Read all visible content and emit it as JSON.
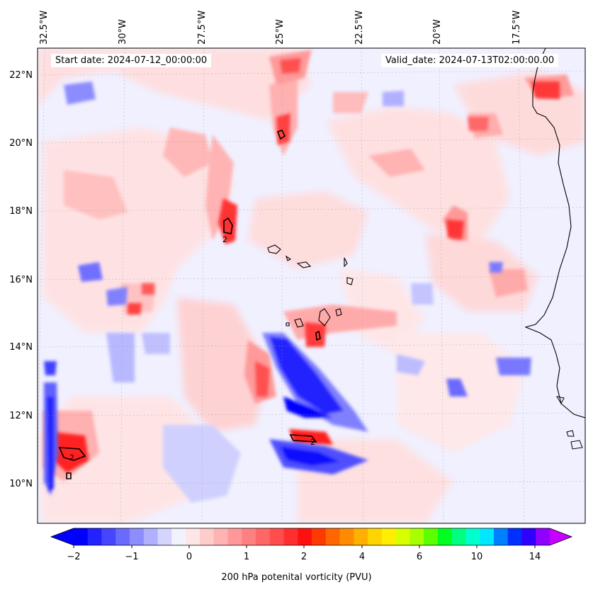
{
  "header": {
    "start_date": "Start date: 2024-07-12_00:00:00",
    "valid_date": "Valid_date: 2024-07-13T02:00:00.00"
  },
  "axes": {
    "lon_ticks": [
      "32.5°W",
      "30°W",
      "27.5°W",
      "25°W",
      "22.5°W",
      "20°W",
      "17.5°W"
    ],
    "lat_ticks": [
      "22°N",
      "20°N",
      "18°N",
      "16°N",
      "14°N",
      "12°N",
      "10°N"
    ]
  },
  "colorbar": {
    "ticks": [
      "−2",
      "−1",
      "0",
      "1",
      "2",
      "4",
      "6",
      "10",
      "14"
    ],
    "label": "200 hPa potenital vorticity (PVU)",
    "colors": [
      "#0000ff",
      "#2323ff",
      "#4646ff",
      "#6a6aff",
      "#8d8dff",
      "#b0b0ff",
      "#d4d4ff",
      "#f2f2ff",
      "#ffe6e6",
      "#ffcccc",
      "#ffb3b3",
      "#ff9999",
      "#ff8080",
      "#ff6666",
      "#ff4d4d",
      "#ff2f2f",
      "#ff1010",
      "#ff3a00",
      "#ff6600",
      "#ff8c00",
      "#ffb000",
      "#ffd400",
      "#ffee00",
      "#d8ff00",
      "#a8ff00",
      "#5cff00",
      "#00ff20",
      "#00ff80",
      "#00ffcc",
      "#00e8ff",
      "#0080ff",
      "#0030ff",
      "#3000ff",
      "#9000ff"
    ],
    "extend_low_color": "#0000ff",
    "extend_high_color": "#c800ff"
  },
  "map": {
    "background": "#f0f0ff",
    "coast_color": "#000000",
    "contour_label": "2"
  }
}
